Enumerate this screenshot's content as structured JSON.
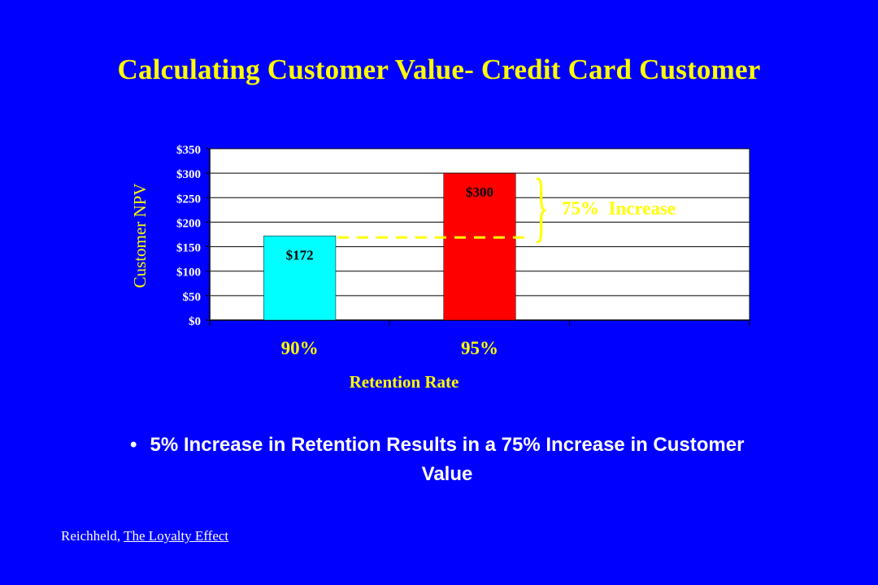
{
  "slide": {
    "title": "Calculating Customer Value- Credit Card Customer",
    "bullet": "5% Increase in Retention Results in a 75% Increase in Customer Value",
    "source_author": "Reichheld, ",
    "source_work": "The Loyalty Effect"
  },
  "annotation": {
    "brace": "}",
    "text": "75%  Increase"
  },
  "colors": {
    "background": "#0000FF",
    "title": "#FFFF00",
    "plot_area": "#FFFFFF",
    "bar_90": "#00FFFF",
    "bar_95": "#FF0000",
    "dashed_line": "#FFFF00"
  },
  "chart_data": {
    "type": "bar",
    "categories": [
      "90%",
      "95%",
      ""
    ],
    "values": [
      172,
      300,
      null
    ],
    "data_labels": [
      "$172",
      "$300",
      ""
    ],
    "bar_colors": [
      "#00FFFF",
      "#FF0000",
      ""
    ],
    "xlabel": "Retention Rate",
    "ylabel": "Customer  NPV",
    "ylim": [
      0,
      350
    ],
    "y_ticks": [
      0,
      50,
      100,
      150,
      200,
      250,
      300,
      350
    ],
    "y_tick_labels": [
      "$0",
      "$50",
      "$100",
      "$150",
      "$200",
      "$250",
      "$300",
      "$350"
    ],
    "grid": true,
    "legend": "none"
  }
}
